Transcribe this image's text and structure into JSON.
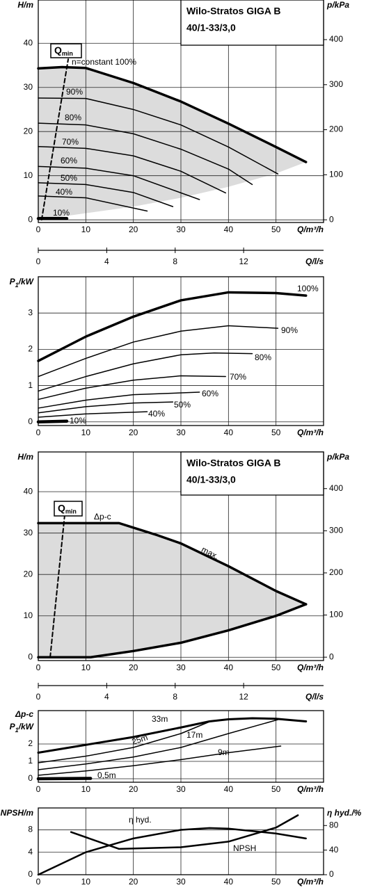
{
  "chart_data": [
    {
      "type": "line",
      "title": [
        "Wilo-Stratos GIGA B",
        "40/1-33/3,0"
      ],
      "ylabel": "H/m",
      "y2label": "p/kPa",
      "xlabel": "Q/m³/h",
      "x2label": "Q/l/s",
      "xlim": [
        0,
        60
      ],
      "xticks": [
        0,
        10,
        20,
        30,
        40,
        50
      ],
      "ylim": [
        -0.6,
        49.8
      ],
      "yticks": [
        0,
        10,
        20,
        30,
        40
      ],
      "y2lim": [
        -6,
        488
      ],
      "y2ticks": [
        0,
        100,
        200,
        300,
        400
      ],
      "x2lim": [
        0,
        16.67
      ],
      "x2ticks": [
        0,
        4,
        8,
        12
      ],
      "grid": true,
      "area_color": "#dcdcdc",
      "qmin": {
        "label": [
          "Q",
          "min"
        ],
        "x": [
          0.7,
          6.3
        ],
        "values": [
          0,
          36.4
        ]
      },
      "envelope": {
        "x": [
          0,
          10,
          20,
          30,
          40,
          50,
          56.3
        ],
        "values": [
          0,
          1.5,
          3,
          5,
          7.5,
          10.5,
          13.1
        ]
      },
      "series": [
        {
          "name": "n=constant 100%",
          "color": "#000",
          "x": [
            0,
            5,
            10,
            20,
            30,
            40,
            50,
            56.3
          ],
          "values": [
            34.3,
            34.6,
            34.4,
            31,
            26.8,
            21.8,
            16.5,
            13.1
          ]
        },
        {
          "name": "90%",
          "color": "#000",
          "x": [
            0,
            10,
            20,
            30,
            40,
            50.4
          ],
          "values": [
            27.6,
            27.5,
            25,
            21.5,
            16.5,
            10.4
          ]
        },
        {
          "name": "80%",
          "color": "#000",
          "x": [
            0,
            10,
            20,
            30,
            40,
            45
          ],
          "values": [
            21.9,
            21.5,
            19.5,
            16,
            11.5,
            8
          ]
        },
        {
          "name": "70%",
          "color": "#000",
          "x": [
            0,
            10,
            20,
            30,
            39.4
          ],
          "values": [
            16.6,
            16.2,
            14.5,
            11,
            6.1
          ]
        },
        {
          "name": "60%",
          "color": "#000",
          "x": [
            0,
            10,
            20,
            33.9
          ],
          "values": [
            12.1,
            11.7,
            10,
            4.6
          ]
        },
        {
          "name": "50%",
          "color": "#000",
          "x": [
            0,
            10,
            20,
            28.3
          ],
          "values": [
            8.4,
            8,
            6.2,
            3
          ]
        },
        {
          "name": "40%",
          "color": "#000",
          "x": [
            0,
            10,
            22.9
          ],
          "values": [
            5.4,
            5,
            2
          ]
        },
        {
          "name": "10%",
          "color": "#000",
          "x": [
            0,
            6
          ],
          "values": [
            0.3,
            0.3
          ]
        }
      ]
    },
    {
      "type": "line",
      "ylabel": [
        "P",
        "1",
        "/kW"
      ],
      "xlabel": "Q/m³/h",
      "xlim": [
        0,
        60
      ],
      "xticks": [
        0,
        10,
        20,
        30,
        40,
        50
      ],
      "ylim": [
        -0.1,
        4.0
      ],
      "yticks": [
        0,
        1,
        2,
        3
      ],
      "grid": true,
      "series": [
        {
          "name": "100%",
          "color": "#000",
          "x": [
            0,
            10,
            20,
            30,
            40,
            50,
            56.3
          ],
          "values": [
            1.68,
            2.35,
            2.9,
            3.35,
            3.57,
            3.55,
            3.48
          ]
        },
        {
          "name": "90%",
          "color": "#000",
          "x": [
            0,
            10,
            20,
            30,
            40,
            50.4
          ],
          "values": [
            1.25,
            1.75,
            2.2,
            2.5,
            2.65,
            2.58
          ]
        },
        {
          "name": "80%",
          "color": "#000",
          "x": [
            0,
            10,
            20,
            30,
            37,
            45
          ],
          "values": [
            0.85,
            1.25,
            1.6,
            1.85,
            1.9,
            1.88
          ]
        },
        {
          "name": "70%",
          "color": "#000",
          "x": [
            0,
            10,
            20,
            30,
            39.4
          ],
          "values": [
            0.62,
            0.93,
            1.15,
            1.27,
            1.25
          ]
        },
        {
          "name": "60%",
          "color": "#000",
          "x": [
            0,
            10,
            20,
            33.9
          ],
          "values": [
            0.38,
            0.6,
            0.75,
            0.82
          ]
        },
        {
          "name": "50%",
          "color": "#000",
          "x": [
            0,
            10,
            20,
            28.3
          ],
          "values": [
            0.25,
            0.42,
            0.52,
            0.55
          ]
        },
        {
          "name": "40%",
          "color": "#000",
          "x": [
            0,
            10,
            22.9
          ],
          "values": [
            0.13,
            0.22,
            0.28
          ]
        },
        {
          "name": "10%",
          "color": "#000",
          "x": [
            0,
            6
          ],
          "values": [
            0,
            0.02
          ]
        }
      ]
    },
    {
      "type": "line",
      "title": [
        "Wilo-Stratos GIGA B",
        "40/1-33/3,0"
      ],
      "ylabel": "H/m",
      "y2label": "p/kPa",
      "xlabel": "Q/m³/h",
      "x2label": "Q/l/s",
      "xlim": [
        0,
        60
      ],
      "xticks": [
        0,
        10,
        20,
        30,
        40,
        50
      ],
      "ylim": [
        -0.8,
        49.6
      ],
      "yticks": [
        0,
        10,
        20,
        30,
        40
      ],
      "y2lim": [
        -8,
        487
      ],
      "y2ticks": [
        0,
        100,
        200,
        300,
        400
      ],
      "x2lim": [
        0,
        16.67
      ],
      "x2ticks": [
        0,
        4,
        8,
        12
      ],
      "grid": true,
      "area_color": "#dcdcdc",
      "annotation": "Δp-c",
      "qmin": {
        "label": [
          "Q",
          "min"
        ],
        "x": [
          2.5,
          5.56
        ],
        "values": [
          0,
          34.4
        ]
      },
      "envelope": {
        "x": [
          0,
          11,
          20,
          30,
          40,
          50,
          56.3
        ],
        "values": [
          0,
          0,
          1.5,
          3.5,
          6.5,
          10,
          12.8
        ]
      },
      "series": [
        {
          "name": "max.",
          "color": "#000",
          "x": [
            0,
            17,
            25,
            30,
            40,
            50,
            56.3
          ],
          "values": [
            32.4,
            32.4,
            29.5,
            27.5,
            22,
            16,
            12.8
          ]
        }
      ]
    },
    {
      "type": "line",
      "ylabel_note": "Δp-c",
      "ylabel": [
        "P",
        "1",
        "/kW"
      ],
      "xlabel": "Q/m³/h",
      "xlim": [
        0,
        60
      ],
      "xticks": [
        0,
        10,
        20,
        30,
        40,
        50
      ],
      "ylim": [
        -0.2,
        3.92
      ],
      "yticks": [
        0,
        1,
        2
      ],
      "grid": true,
      "series": [
        {
          "name": "33m",
          "color": "#000",
          "x": [
            0,
            10,
            20,
            30,
            36,
            40,
            45,
            50,
            56.3
          ],
          "values": [
            1.5,
            1.95,
            2.4,
            2.95,
            3.3,
            3.42,
            3.48,
            3.45,
            3.3
          ]
        },
        {
          "name": "25m",
          "color": "#000",
          "x": [
            0,
            10,
            20,
            30,
            36
          ],
          "values": [
            0.92,
            1.3,
            1.8,
            2.6,
            3.28
          ]
        },
        {
          "name": "17m",
          "color": "#000",
          "x": [
            0,
            10,
            20,
            30,
            40,
            50.4
          ],
          "values": [
            0.52,
            0.85,
            1.25,
            1.8,
            2.6,
            3.4
          ]
        },
        {
          "name": "9m",
          "color": "#000",
          "x": [
            0,
            10,
            20,
            30,
            40,
            51
          ],
          "values": [
            0.2,
            0.45,
            0.75,
            1.1,
            1.5,
            1.88
          ]
        },
        {
          "name": "0,5m",
          "color": "#000",
          "x": [
            0,
            11
          ],
          "values": [
            0,
            0.02
          ]
        }
      ]
    },
    {
      "type": "line",
      "ylabel": "NPSH/m",
      "y2label": "η hyd./%",
      "xlabel": "Q/m³/h",
      "xlim": [
        0,
        60
      ],
      "xticks": [
        0,
        10,
        20,
        30,
        40,
        50
      ],
      "ylim": [
        0,
        11.9
      ],
      "yticks": [
        0,
        4,
        8
      ],
      "y2lim": [
        0,
        108.6
      ],
      "y2ticks": [
        0,
        40,
        80
      ],
      "grid": true,
      "series": [
        {
          "name": "η hyd.",
          "color": "#000",
          "axis": "y2",
          "x": [
            0,
            10,
            20,
            30,
            36,
            40,
            50,
            56.3
          ],
          "values": [
            0,
            36.6,
            59,
            73,
            76,
            75,
            67,
            59
          ]
        },
        {
          "name": "NPSH",
          "color": "#000",
          "x": [
            6.9,
            17,
            30,
            40,
            50,
            54.6
          ],
          "values": [
            7.6,
            4.6,
            4.9,
            5.9,
            8.4,
            10.6
          ]
        }
      ]
    }
  ]
}
